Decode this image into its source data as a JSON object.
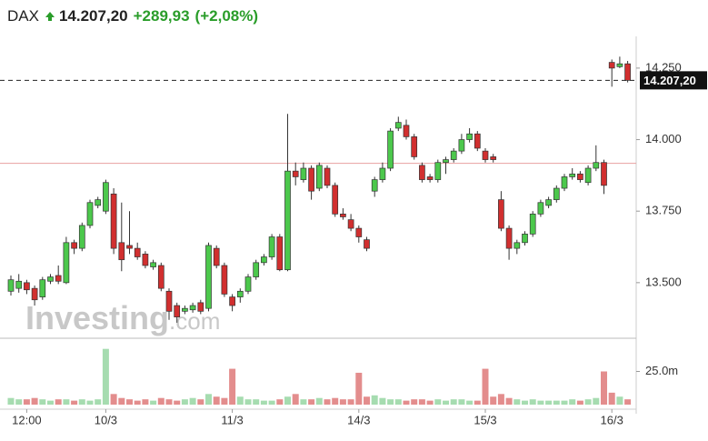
{
  "chart_data": {
    "type": "candlestick",
    "title": "DAX",
    "last_price": {
      "value": 14207.2,
      "label": "14.207,20"
    },
    "change": "+289,93",
    "change_percent": "(+2,08%)",
    "prev_close": 13917.27,
    "watermark": [
      "Investing",
      ".com"
    ],
    "up_color": "#4cc84c",
    "down_color": "#d12f2f",
    "volume_up_color": "#a6dcb0",
    "volume_down_color": "#e38d8d",
    "categories": [
      null,
      null,
      "12:00",
      null,
      null,
      null,
      null,
      null,
      null,
      null,
      null,
      null,
      "10/3",
      null,
      null,
      null,
      null,
      null,
      null,
      null,
      null,
      null,
      null,
      null,
      null,
      null,
      null,
      null,
      "11/3",
      null,
      null,
      null,
      null,
      null,
      null,
      null,
      null,
      null,
      null,
      null,
      null,
      null,
      null,
      null,
      "14/3",
      null,
      null,
      null,
      null,
      null,
      null,
      null,
      null,
      null,
      null,
      null,
      null,
      null,
      null,
      null,
      "15/3",
      null,
      null,
      null,
      null,
      null,
      null,
      null,
      null,
      null,
      null,
      null,
      null,
      null,
      null,
      null,
      "16/3",
      null,
      null
    ],
    "open": [
      13470,
      13480,
      13500,
      13480,
      13450,
      13505,
      13525,
      13500,
      13640,
      13620,
      13700,
      13770,
      13750,
      13810,
      13640,
      13630,
      13620,
      13600,
      13555,
      13560,
      13470,
      13420,
      13400,
      13405,
      13430,
      13410,
      13620,
      13560,
      13450,
      13450,
      13470,
      13520,
      13570,
      13590,
      13660,
      13545,
      13890,
      13860,
      13900,
      13830,
      13900,
      13840,
      13740,
      13720,
      13690,
      13650,
      13820,
      13860,
      13900,
      14040,
      14050,
      14010,
      13910,
      13870,
      13860,
      13920,
      13930,
      13960,
      14000,
      14020,
      13960,
      13940,
      13790,
      13690,
      13620,
      13640,
      13670,
      13740,
      13770,
      13790,
      13830,
      13870,
      13880,
      13850,
      13900,
      13920,
      14270,
      14255,
      14265
    ],
    "high": [
      13525,
      13530,
      13510,
      13490,
      13520,
      13530,
      13560,
      13660,
      13650,
      13710,
      13790,
      13800,
      13860,
      13830,
      13780,
      13750,
      13640,
      13610,
      13580,
      13570,
      13480,
      13430,
      13420,
      13430,
      13440,
      13640,
      13630,
      13570,
      13460,
      13480,
      13530,
      13580,
      13600,
      13670,
      13670,
      14090,
      13920,
      13920,
      13910,
      13920,
      13910,
      13850,
      13760,
      13740,
      13700,
      13660,
      13870,
      13920,
      14040,
      14080,
      14070,
      14020,
      13920,
      13880,
      13930,
      13940,
      13970,
      14020,
      14040,
      14030,
      13970,
      13950,
      13820,
      13700,
      13650,
      13680,
      13750,
      13790,
      13800,
      13840,
      13880,
      13900,
      13890,
      13910,
      13980,
      13930,
      14280,
      14290,
      14275
    ],
    "low": [
      13455,
      13465,
      13460,
      13420,
      13440,
      13495,
      13495,
      13495,
      13600,
      13610,
      13690,
      13760,
      13740,
      13600,
      13540,
      13600,
      13580,
      13550,
      13545,
      13470,
      13370,
      13360,
      13390,
      13395,
      13390,
      13400,
      13550,
      13450,
      13400,
      13430,
      13460,
      13510,
      13560,
      13580,
      13540,
      13540,
      13840,
      13850,
      13790,
      13820,
      13830,
      13730,
      13720,
      13680,
      13640,
      13610,
      13800,
      13850,
      13890,
      14030,
      14000,
      13930,
      13850,
      13850,
      13850,
      13880,
      13920,
      13950,
      13990,
      13960,
      13920,
      13920,
      13680,
      13580,
      13600,
      13630,
      13660,
      13730,
      13760,
      13780,
      13820,
      13860,
      13850,
      13840,
      13890,
      13810,
      14185,
      14250,
      14200
    ],
    "close": [
      13510,
      13505,
      13475,
      13440,
      13510,
      13520,
      13505,
      13640,
      13620,
      13700,
      13780,
      13790,
      13850,
      13620,
      13580,
      13620,
      13590,
      13560,
      13570,
      13480,
      13400,
      13380,
      13410,
      13420,
      13400,
      13630,
      13560,
      13460,
      13420,
      13470,
      13520,
      13570,
      13590,
      13660,
      13545,
      13890,
      13870,
      13900,
      13820,
      13910,
      13840,
      13740,
      13730,
      13690,
      13660,
      13620,
      13860,
      13900,
      14030,
      14060,
      14010,
      13940,
      13860,
      13860,
      13920,
      13930,
      13960,
      14000,
      14020,
      13970,
      13930,
      13930,
      13690,
      13620,
      13640,
      13670,
      13740,
      13780,
      13790,
      13830,
      13870,
      13880,
      13860,
      13900,
      13920,
      13840,
      14250,
      14265,
      14207.2
    ],
    "volume": [
      5,
      4,
      4,
      5,
      4,
      3,
      4,
      4,
      3,
      4,
      3,
      4,
      42,
      8,
      5,
      4,
      3,
      4,
      3,
      5,
      4,
      3,
      4,
      5,
      4,
      8,
      6,
      5,
      27,
      6,
      4,
      4,
      3,
      3,
      4,
      6,
      8,
      4,
      4,
      5,
      4,
      5,
      4,
      4,
      24,
      6,
      7,
      5,
      4,
      4,
      3,
      4,
      4,
      3,
      4,
      3,
      4,
      4,
      3,
      3,
      27,
      6,
      8,
      5,
      4,
      3,
      4,
      3,
      3,
      3,
      3,
      4,
      3,
      4,
      5,
      25,
      9,
      6,
      4
    ],
    "ylim": [
      13312,
      14345
    ],
    "yticks": [
      {
        "value": 13500,
        "label": "13.500"
      },
      {
        "value": 13750,
        "label": "13.750"
      },
      {
        "value": 14000,
        "label": "14.000"
      },
      {
        "value": 14250,
        "label": "14.250"
      }
    ],
    "volume_ylim": [
      0,
      50
    ],
    "volume_yticks": [
      {
        "value": 25,
        "label": "25.0m"
      }
    ]
  }
}
